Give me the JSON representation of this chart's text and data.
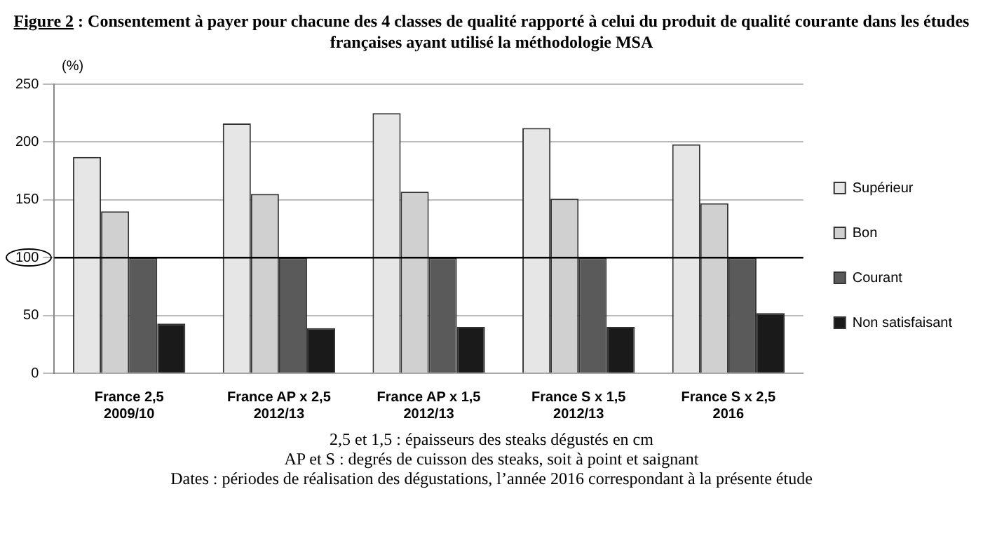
{
  "chart_data": {
    "type": "bar",
    "title": "Figure 2 : Consentement à payer pour chacune des 4 classes de qualité rapporté à celui du produit de qualité courante dans les études françaises ayant utilisé la méthodologie MSA",
    "ylabel": "(%)",
    "categories": [
      "France 2,5\n2009/10",
      "France AP x 2,5\n2012/13",
      "France AP x 1,5\n2012/13",
      "France S x 1,5\n2012/13",
      "France S x 2,5\n2016"
    ],
    "series": [
      {
        "name": "Supérieur",
        "color": "#e6e6e6",
        "values": [
          187,
          216,
          225,
          212,
          198
        ]
      },
      {
        "name": "Bon",
        "color": "#d0d0d0",
        "values": [
          140,
          155,
          157,
          151,
          147
        ]
      },
      {
        "name": "Courant",
        "color": "#5a5a5a",
        "values": [
          100,
          100,
          100,
          100,
          100
        ]
      },
      {
        "name": "Non satisfaisant",
        "color": "#1a1a1a",
        "values": [
          43,
          39,
          40,
          40,
          52
        ]
      }
    ],
    "ylim": [
      0,
      250
    ],
    "yticks": [
      0,
      50,
      100,
      150,
      200,
      250
    ],
    "grid": "y",
    "legend": "right",
    "ref_lines": [
      {
        "axis": "y",
        "value": 100,
        "color": "#000000"
      }
    ],
    "annotations": [
      "2,5 et 1,5 : épaisseurs des steaks dégustés en cm",
      "AP et S : degrés de cuisson des steaks, soit à point et saignant",
      "Dates : périodes de réalisation des dégustations, l’année 2016 correspondant à la présente étude"
    ]
  }
}
